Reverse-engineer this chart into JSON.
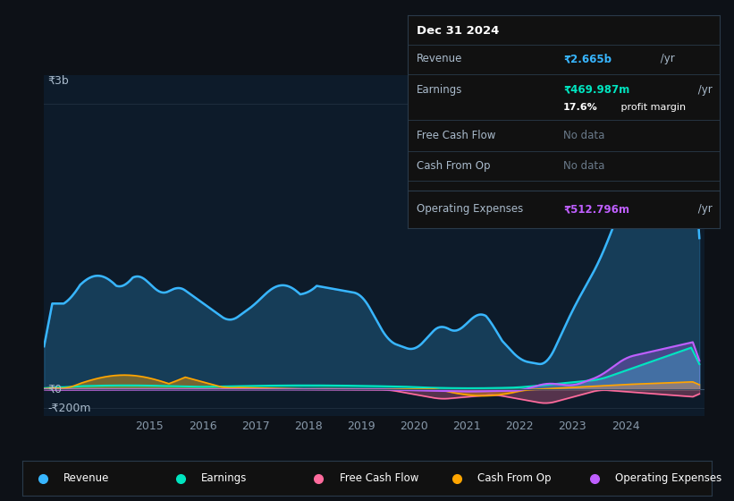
{
  "bg_color": "#0d1117",
  "plot_bg_color": "#0d1b2a",
  "grid_color": "#1e2d3d",
  "revenue_color": "#38b6ff",
  "earnings_color": "#00e5c0",
  "fcf_color": "#ff6b9d",
  "cashfromop_color": "#ffa500",
  "opex_color": "#bf5fff",
  "y_top_label": "₹3b",
  "y_zero_label": "₹0",
  "y_bottom_label": "-₹200m",
  "info_box": {
    "date": "Dec 31 2024",
    "revenue_val": "₹2.665b",
    "revenue_unit": " /yr",
    "earnings_val": "₹469.987m",
    "earnings_unit": " /yr",
    "profit_margin": "17.6%",
    "profit_margin_text": " profit margin",
    "fcf_val": "No data",
    "cashop_val": "No data",
    "opex_val": "₹512.796m",
    "opex_unit": " /yr"
  },
  "legend_items": [
    {
      "label": "Revenue",
      "color": "#38b6ff"
    },
    {
      "label": "Earnings",
      "color": "#00e5c0"
    },
    {
      "label": "Free Cash Flow",
      "color": "#ff6b9d"
    },
    {
      "label": "Cash From Op",
      "color": "#ffa500"
    },
    {
      "label": "Operating Expenses",
      "color": "#bf5fff"
    }
  ],
  "x_tick_positions": [
    2015,
    2016,
    2017,
    2018,
    2019,
    2020,
    2021,
    2022,
    2023,
    2024
  ],
  "ylim_min": -280,
  "ylim_max": 3300,
  "xlim_min": 2013.0,
  "xlim_max": 2025.5
}
